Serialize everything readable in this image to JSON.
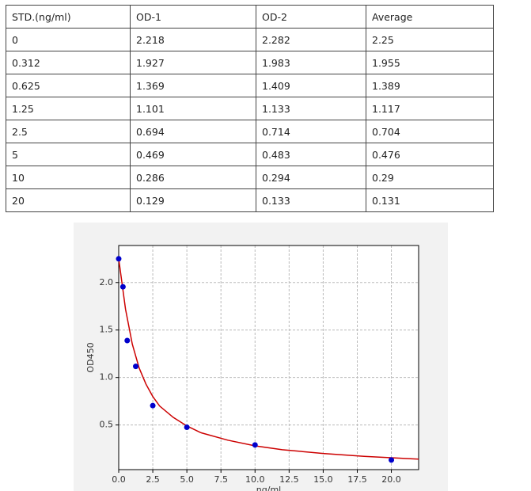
{
  "table": {
    "header": [
      "STD.(ng/ml)",
      "OD-1",
      "OD-2",
      "Average"
    ],
    "rows": [
      [
        "0",
        "2.218",
        "2.282",
        "2.25"
      ],
      [
        "0.312",
        "1.927",
        "1.983",
        "1.955"
      ],
      [
        "0.625",
        "1.369",
        "1.409",
        "1.389"
      ],
      [
        "1.25",
        "1.101",
        "1.133",
        "1.117"
      ],
      [
        "2.5",
        "0.694",
        "0.714",
        "0.704"
      ],
      [
        "5",
        "0.469",
        "0.483",
        "0.476"
      ],
      [
        "10",
        "0.286",
        "0.294",
        "0.29"
      ],
      [
        "20",
        "0.129",
        "0.133",
        "0.131"
      ]
    ]
  },
  "chart_data": {
    "type": "scatter",
    "x_label": "ng/ml",
    "y_label": "OD450",
    "x": [
      0,
      0.312,
      0.625,
      1.25,
      2.5,
      5,
      10,
      20
    ],
    "values": [
      2.25,
      1.955,
      1.389,
      1.117,
      0.704,
      0.476,
      0.29,
      0.131
    ],
    "color": "#0000cc",
    "fit": {
      "x": [
        0,
        0.5,
        1,
        1.5,
        2,
        2.5,
        3,
        4,
        5,
        6,
        8,
        10,
        12,
        15,
        18,
        22
      ],
      "values": [
        2.25,
        1.72,
        1.35,
        1.1,
        0.93,
        0.8,
        0.7,
        0.58,
        0.49,
        0.42,
        0.34,
        0.28,
        0.24,
        0.2,
        0.17,
        0.14
      ],
      "color": "#cc0000"
    },
    "xlim": [
      0,
      22
    ],
    "xticks": [
      {
        "value": 0,
        "label": "0.0"
      },
      2.5,
      {
        "value": 5,
        "label": "5.0"
      },
      7.5,
      {
        "value": 10,
        "label": "10.0"
      },
      12.5,
      {
        "value": 15,
        "label": "15.0"
      },
      17.5,
      {
        "value": 20,
        "label": "20.0"
      }
    ],
    "ylim": [
      0.03,
      2.39
    ],
    "yticks": [
      0.5,
      {
        "value": 1,
        "label": "1.0"
      },
      1.5,
      {
        "value": 2,
        "label": "2.0"
      }
    ],
    "grid": true
  }
}
